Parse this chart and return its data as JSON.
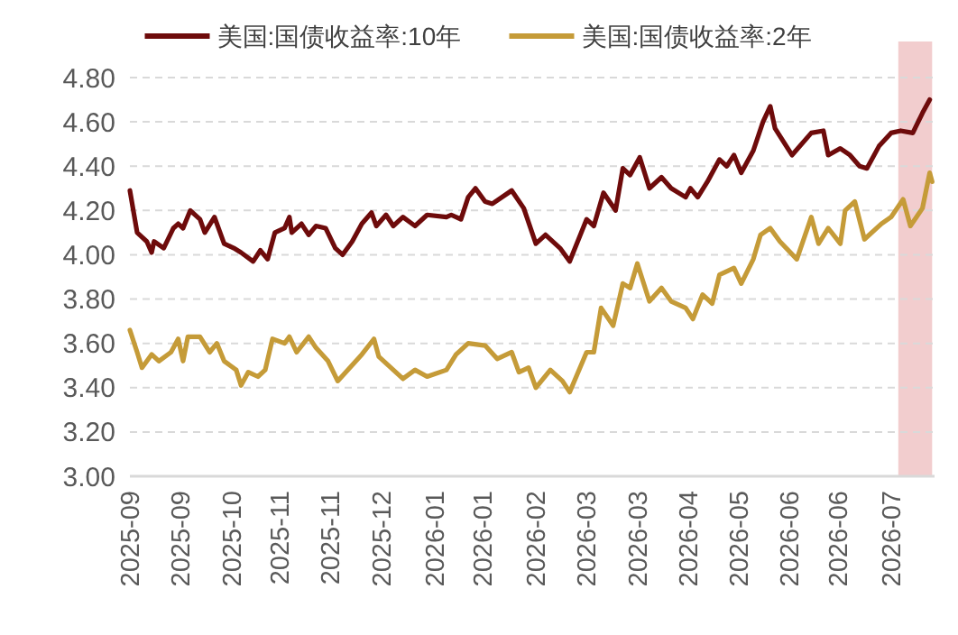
{
  "chart_data": {
    "type": "line",
    "legend": "top",
    "grid": "y",
    "line_style": "solid",
    "marker": "none",
    "xlim": [
      "2025-09-01",
      "2026-07-31"
    ],
    "ylim": [
      3.0,
      4.8
    ],
    "yticks": [
      {
        "value": 3.0,
        "label": "3.00"
      },
      {
        "value": 3.2,
        "label": "3.20"
      },
      {
        "value": 3.4,
        "label": "3.40"
      },
      {
        "value": 3.6,
        "label": "3.60"
      },
      {
        "value": 3.8,
        "label": "3.80"
      },
      {
        "value": 4.0,
        "label": "4.00"
      },
      {
        "value": 4.2,
        "label": "4.20"
      },
      {
        "value": 4.4,
        "label": "4.40"
      },
      {
        "value": 4.6,
        "label": "4.60"
      },
      {
        "value": 4.8,
        "label": "4.80"
      }
    ],
    "xticks": [
      {
        "value": "2025-09-01",
        "label": "2025-09"
      },
      {
        "value": "2025-09-22",
        "label": "2025-09"
      },
      {
        "value": "2025-10-13",
        "label": "2025-10"
      },
      {
        "value": "2025-11-02",
        "label": "2025-11"
      },
      {
        "value": "2025-11-23",
        "label": "2025-11"
      },
      {
        "value": "2025-12-14",
        "label": "2025-12"
      },
      {
        "value": "2026-01-05",
        "label": "2026-01"
      },
      {
        "value": "2026-01-25",
        "label": "2026-01"
      },
      {
        "value": "2026-02-16",
        "label": "2026-02"
      },
      {
        "value": "2026-03-09",
        "label": "2026-03"
      },
      {
        "value": "2026-03-30",
        "label": "2026-03"
      },
      {
        "value": "2026-04-20",
        "label": "2026-04"
      },
      {
        "value": "2026-05-11",
        "label": "2026-05"
      },
      {
        "value": "2026-06-01",
        "label": "2026-06"
      },
      {
        "value": "2026-06-21",
        "label": "2026-06"
      },
      {
        "value": "2026-07-13",
        "label": "2026-07"
      }
    ],
    "bands": [
      {
        "axis": "x",
        "from": "2026-07-16",
        "to": "2026-07-30",
        "color": "#f0c4c6"
      }
    ],
    "series": [
      {
        "name": "美国:国债收益率:10年",
        "color": "#6e0b0b",
        "x": [
          "2025-09-01",
          "2025-09-04",
          "2025-09-08",
          "2025-09-10",
          "2025-09-11",
          "2025-09-15",
          "2025-09-19",
          "2025-09-21",
          "2025-09-23",
          "2025-09-26",
          "2025-09-30",
          "2025-10-02",
          "2025-10-06",
          "2025-10-10",
          "2025-10-14",
          "2025-10-17",
          "2025-10-22",
          "2025-10-25",
          "2025-10-28",
          "2025-10-31",
          "2025-11-04",
          "2025-11-06",
          "2025-11-07",
          "2025-11-11",
          "2025-11-14",
          "2025-11-17",
          "2025-11-21",
          "2025-11-25",
          "2025-11-28",
          "2025-12-02",
          "2025-12-06",
          "2025-12-10",
          "2025-12-12",
          "2025-12-16",
          "2025-12-19",
          "2025-12-23",
          "2025-12-28",
          "2026-01-02",
          "2026-01-10",
          "2026-01-12",
          "2026-01-16",
          "2026-01-19",
          "2026-01-22",
          "2026-01-26",
          "2026-01-29",
          "2026-02-06",
          "2026-02-11",
          "2026-02-16",
          "2026-02-20",
          "2026-02-26",
          "2026-03-02",
          "2026-03-09",
          "2026-03-12",
          "2026-03-16",
          "2026-03-21",
          "2026-03-24",
          "2026-03-27",
          "2026-03-31",
          "2026-04-04",
          "2026-04-09",
          "2026-04-13",
          "2026-04-19",
          "2026-04-21",
          "2026-04-24",
          "2026-04-28",
          "2026-05-03",
          "2026-05-06",
          "2026-05-09",
          "2026-05-12",
          "2026-05-17",
          "2026-05-21",
          "2026-05-24",
          "2026-05-26",
          "2026-06-02",
          "2026-06-10",
          "2026-06-15",
          "2026-06-17",
          "2026-06-22",
          "2026-06-26",
          "2026-06-30",
          "2026-07-03",
          "2026-07-08",
          "2026-07-13",
          "2026-07-17",
          "2026-07-22",
          "2026-07-26",
          "2026-07-29"
        ],
        "values": [
          4.29,
          4.1,
          4.06,
          4.01,
          4.06,
          4.03,
          4.12,
          4.14,
          4.12,
          4.2,
          4.16,
          4.1,
          4.17,
          4.05,
          4.03,
          4.01,
          3.97,
          4.02,
          3.98,
          4.1,
          4.12,
          4.17,
          4.1,
          4.14,
          4.09,
          4.13,
          4.12,
          4.03,
          4.0,
          4.06,
          4.14,
          4.19,
          4.13,
          4.18,
          4.13,
          4.17,
          4.13,
          4.18,
          4.17,
          4.18,
          4.16,
          4.26,
          4.3,
          4.24,
          4.23,
          4.29,
          4.21,
          4.05,
          4.09,
          4.03,
          3.97,
          4.16,
          4.13,
          4.28,
          4.2,
          4.39,
          4.36,
          4.44,
          4.3,
          4.35,
          4.3,
          4.26,
          4.3,
          4.26,
          4.33,
          4.43,
          4.4,
          4.45,
          4.37,
          4.47,
          4.6,
          4.67,
          4.57,
          4.45,
          4.55,
          4.56,
          4.45,
          4.48,
          4.45,
          4.4,
          4.39,
          4.49,
          4.55,
          4.56,
          4.55,
          4.64,
          4.7
        ]
      },
      {
        "name": "美国:国债收益率:2年",
        "color": "#c59b38",
        "x": [
          "2025-09-01",
          "2025-09-04",
          "2025-09-06",
          "2025-09-10",
          "2025-09-13",
          "2025-09-18",
          "2025-09-21",
          "2025-09-23",
          "2025-09-25",
          "2025-09-30",
          "2025-10-04",
          "2025-10-07",
          "2025-10-10",
          "2025-10-15",
          "2025-10-17",
          "2025-10-20",
          "2025-10-24",
          "2025-10-27",
          "2025-10-30",
          "2025-11-04",
          "2025-11-06",
          "2025-11-09",
          "2025-11-14",
          "2025-11-17",
          "2025-11-22",
          "2025-11-26",
          "2025-12-01",
          "2025-12-06",
          "2025-12-11",
          "2025-12-13",
          "2025-12-18",
          "2025-12-23",
          "2025-12-28",
          "2026-01-02",
          "2026-01-10",
          "2026-01-14",
          "2026-01-19",
          "2026-01-26",
          "2026-01-31",
          "2026-02-06",
          "2026-02-09",
          "2026-02-13",
          "2026-02-16",
          "2026-02-22",
          "2026-02-27",
          "2026-03-02",
          "2026-03-09",
          "2026-03-12",
          "2026-03-15",
          "2026-03-20",
          "2026-03-24",
          "2026-03-27",
          "2026-03-30",
          "2026-04-04",
          "2026-04-09",
          "2026-04-13",
          "2026-04-19",
          "2026-04-22",
          "2026-04-26",
          "2026-04-30",
          "2026-05-03",
          "2026-05-09",
          "2026-05-12",
          "2026-05-17",
          "2026-05-20",
          "2026-05-24",
          "2026-05-28",
          "2026-06-04",
          "2026-06-10",
          "2026-06-13",
          "2026-06-17",
          "2026-06-22",
          "2026-06-24",
          "2026-06-28",
          "2026-07-02",
          "2026-07-09",
          "2026-07-13",
          "2026-07-18",
          "2026-07-21",
          "2026-07-26",
          "2026-07-29",
          "2026-07-30"
        ],
        "values": [
          3.66,
          3.56,
          3.49,
          3.55,
          3.52,
          3.56,
          3.62,
          3.52,
          3.63,
          3.63,
          3.56,
          3.6,
          3.52,
          3.48,
          3.41,
          3.47,
          3.45,
          3.48,
          3.62,
          3.6,
          3.63,
          3.56,
          3.63,
          3.58,
          3.52,
          3.43,
          3.49,
          3.55,
          3.62,
          3.54,
          3.49,
          3.44,
          3.48,
          3.45,
          3.48,
          3.55,
          3.6,
          3.59,
          3.53,
          3.56,
          3.47,
          3.49,
          3.4,
          3.48,
          3.43,
          3.38,
          3.56,
          3.56,
          3.76,
          3.68,
          3.87,
          3.85,
          3.96,
          3.79,
          3.85,
          3.79,
          3.76,
          3.71,
          3.82,
          3.78,
          3.91,
          3.94,
          3.87,
          3.98,
          4.09,
          4.12,
          4.06,
          3.98,
          4.17,
          4.05,
          4.12,
          4.05,
          4.2,
          4.24,
          4.07,
          4.14,
          4.17,
          4.25,
          4.13,
          4.21,
          4.37,
          4.33
        ]
      }
    ]
  }
}
